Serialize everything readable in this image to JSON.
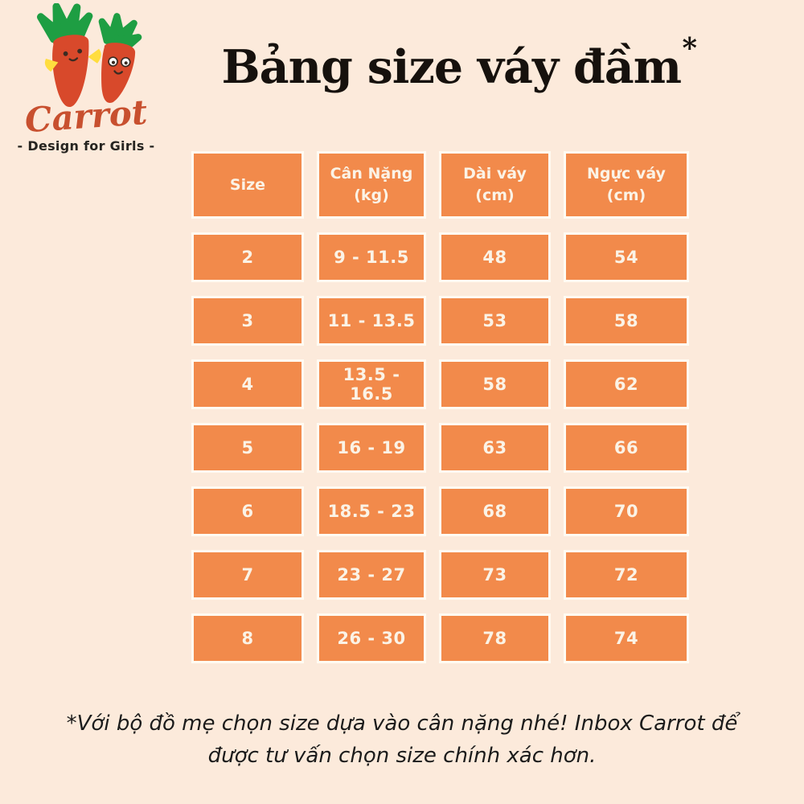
{
  "page": {
    "background_color": "#FCEADB"
  },
  "logo": {
    "brand": "Carrot",
    "tagline": "- Design for Girls -",
    "mascot": "two-smiling-cartoon-carrots",
    "colors": {
      "carrot_body": "#D8492B",
      "carrot_leaves": "#1E9E43",
      "carrot_hands": "#FFDD3E",
      "brand_text": "#C8502F"
    }
  },
  "title": {
    "text": "Bảng size váy đầm",
    "superscript": "*"
  },
  "table": {
    "headers": [
      "Size",
      "Cân Nặng\n(kg)",
      "Dài váy\n(cm)",
      "Ngực váy (cm)"
    ],
    "rows": [
      [
        "2",
        "9 - 11.5",
        "48",
        "54"
      ],
      [
        "3",
        "11 - 13.5",
        "53",
        "58"
      ],
      [
        "4",
        "13.5 - 16.5",
        "58",
        "62"
      ],
      [
        "5",
        "16 - 19",
        "63",
        "66"
      ],
      [
        "6",
        "18.5 - 23",
        "68",
        "70"
      ],
      [
        "7",
        "23 - 27",
        "73",
        "72"
      ],
      [
        "8",
        "26 - 30",
        "78",
        "74"
      ]
    ],
    "cell_color": "#F28A4B",
    "cell_border_color": "#FFFBF2",
    "cell_text_color": "#FBF3E6"
  },
  "footnote": {
    "text": "*Với bộ đồ mẹ chọn size dựa vào cân nặng nhé! Inbox Carrot để được tư vấn chọn size chính xác hơn."
  }
}
